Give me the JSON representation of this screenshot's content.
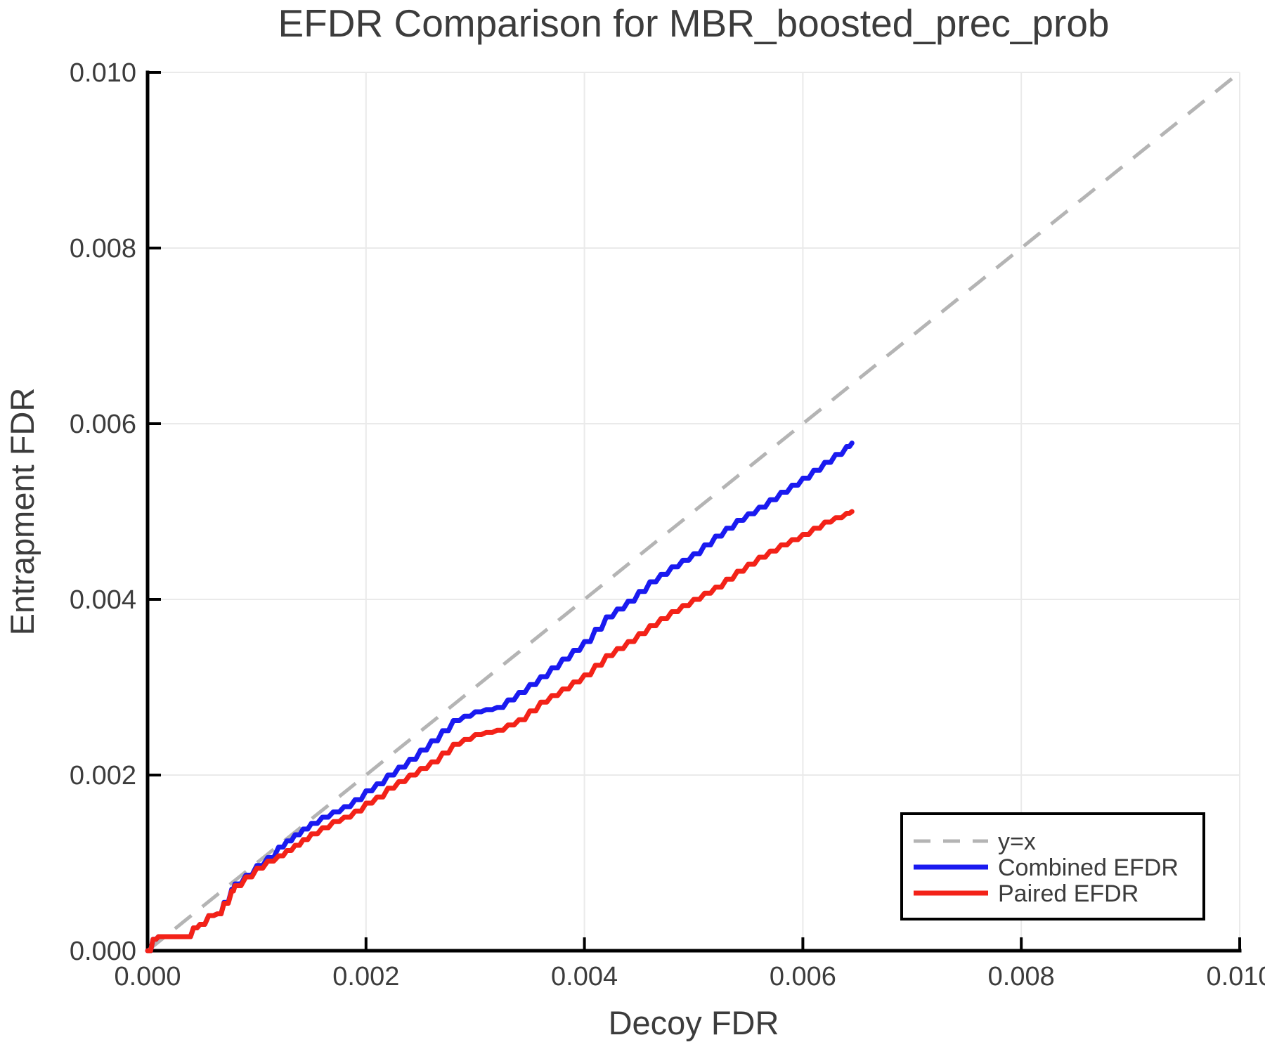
{
  "chart_data": {
    "type": "line",
    "title": "EFDR Comparison for MBR_boosted_prec_prob",
    "xlabel": "Decoy FDR",
    "ylabel": "Entrapment FDR",
    "xlim": [
      0,
      0.01
    ],
    "ylim": [
      0,
      0.01
    ],
    "grid": true,
    "legend_position": "lower right",
    "x_tick_values": [
      0,
      0.002,
      0.004,
      0.006,
      0.008,
      0.01
    ],
    "x_tick_labels": [
      "0.000",
      "0.002",
      "0.004",
      "0.006",
      "0.008",
      "0.010"
    ],
    "y_tick_values": [
      0,
      0.002,
      0.004,
      0.006,
      0.008,
      0.01
    ],
    "y_tick_labels": [
      "0.000",
      "0.002",
      "0.004",
      "0.006",
      "0.008",
      "0.010"
    ],
    "reference_line": {
      "name": "y=x",
      "style": "dashed",
      "color": "#b4b4b4",
      "from": [
        0,
        0
      ],
      "to": [
        0.01,
        0.01
      ]
    },
    "series": [
      {
        "name": "Combined EFDR",
        "color": "#1a1af0",
        "x": [
          0,
          5e-05,
          0.0001,
          0.00036,
          0.00042,
          0.00048,
          0.00056,
          0.00064,
          0.0007,
          0.00077,
          0.0008,
          0.0009,
          0.001,
          0.0011,
          0.0012,
          0.00135,
          0.0015,
          0.0016,
          0.0017,
          0.0018,
          0.0019,
          0.002,
          0.0021,
          0.0022,
          0.0024,
          0.0026,
          0.0028,
          0.003,
          0.0032,
          0.0034,
          0.0036,
          0.0038,
          0.004,
          0.0042,
          0.0044,
          0.0046,
          0.0048,
          0.005,
          0.0052,
          0.0054,
          0.0056,
          0.0058,
          0.006,
          0.0062,
          0.0064,
          0.00645
        ],
        "y": [
          0,
          0.00013,
          0.00016,
          0.00016,
          0.00026,
          0.0003,
          0.0004,
          0.00042,
          0.00055,
          0.0007,
          0.00076,
          0.00086,
          0.00097,
          0.00106,
          0.00118,
          0.00132,
          0.00145,
          0.00152,
          0.00158,
          0.00164,
          0.00172,
          0.00182,
          0.0019,
          0.002,
          0.00218,
          0.00239,
          0.00262,
          0.00272,
          0.00277,
          0.00294,
          0.00312,
          0.00332,
          0.00352,
          0.0038,
          0.00398,
          0.0042,
          0.00437,
          0.00452,
          0.00472,
          0.0049,
          0.00505,
          0.00522,
          0.00538,
          0.00556,
          0.00574,
          0.00578
        ]
      },
      {
        "name": "Paired EFDR",
        "color": "#f32218",
        "x": [
          0,
          5e-05,
          0.0001,
          0.00036,
          0.00042,
          0.00048,
          0.00056,
          0.00064,
          0.0007,
          0.00077,
          0.0008,
          0.0009,
          0.001,
          0.0011,
          0.0012,
          0.00135,
          0.0015,
          0.0016,
          0.0017,
          0.0018,
          0.0019,
          0.002,
          0.0021,
          0.0022,
          0.0024,
          0.0026,
          0.0028,
          0.003,
          0.0032,
          0.0034,
          0.0036,
          0.0038,
          0.004,
          0.0042,
          0.0044,
          0.0046,
          0.0048,
          0.005,
          0.0052,
          0.0054,
          0.0056,
          0.0058,
          0.006,
          0.0062,
          0.0064,
          0.00645
        ],
        "y": [
          0,
          0.00013,
          0.00016,
          0.00016,
          0.00026,
          0.0003,
          0.0004,
          0.00042,
          0.00054,
          0.00068,
          0.00074,
          0.00084,
          0.00094,
          0.00102,
          0.00108,
          0.0012,
          0.00133,
          0.0014,
          0.00147,
          0.00152,
          0.00159,
          0.00168,
          0.00175,
          0.00185,
          0.002,
          0.00215,
          0.00235,
          0.00246,
          0.00251,
          0.00263,
          0.00283,
          0.00298,
          0.00314,
          0.00336,
          0.00352,
          0.0037,
          0.00386,
          0.004,
          0.00414,
          0.00432,
          0.00448,
          0.00462,
          0.00474,
          0.00488,
          0.00498,
          0.005
        ]
      }
    ]
  },
  "legend": {
    "items": [
      {
        "label": "y=x"
      },
      {
        "label": "Combined EFDR"
      },
      {
        "label": "Paired EFDR"
      }
    ]
  }
}
